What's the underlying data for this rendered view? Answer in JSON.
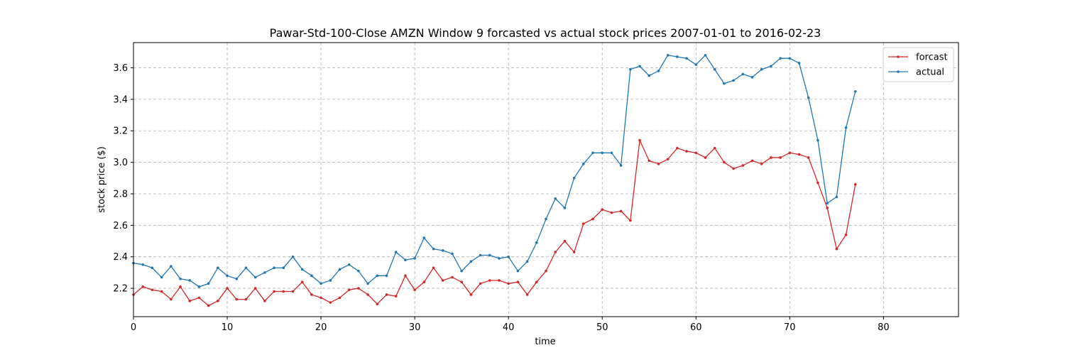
{
  "chart_data": {
    "type": "line",
    "title": "Pawar-Std-100-Close AMZN Window 9 forcasted vs actual stock prices 2007-01-01 to 2016-02-23",
    "xlabel": "time",
    "ylabel": "stock price ($)",
    "xlim": [
      0,
      88
    ],
    "ylim": [
      2.02,
      3.76
    ],
    "xticks": [
      0,
      10,
      20,
      30,
      40,
      50,
      60,
      70,
      80
    ],
    "yticks": [
      2.2,
      2.4,
      2.6,
      2.8,
      3.0,
      3.2,
      3.4,
      3.6
    ],
    "grid": true,
    "legend_position": "top-right",
    "series": [
      {
        "name": "forcast",
        "color": "#d62728",
        "values": [
          2.16,
          2.21,
          2.19,
          2.18,
          2.13,
          2.21,
          2.12,
          2.14,
          2.09,
          2.12,
          2.2,
          2.13,
          2.13,
          2.2,
          2.12,
          2.18,
          2.18,
          2.18,
          2.24,
          2.16,
          2.14,
          2.11,
          2.14,
          2.19,
          2.2,
          2.16,
          2.1,
          2.16,
          2.15,
          2.28,
          2.19,
          2.24,
          2.33,
          2.25,
          2.27,
          2.24,
          2.16,
          2.23,
          2.25,
          2.25,
          2.23,
          2.24,
          2.16,
          2.24,
          2.31,
          2.43,
          2.5,
          2.43,
          2.61,
          2.64,
          2.7,
          2.68,
          2.69,
          2.63,
          3.14,
          3.01,
          2.99,
          3.02,
          3.09,
          3.07,
          3.06,
          3.03,
          3.09,
          3.0,
          2.96,
          2.98,
          3.01,
          2.99,
          3.03,
          3.03,
          3.06,
          3.05,
          3.03,
          2.87,
          2.71,
          2.45,
          2.54,
          2.86
        ]
      },
      {
        "name": "actual",
        "color": "#1f77b4",
        "values": [
          2.36,
          2.35,
          2.33,
          2.27,
          2.34,
          2.26,
          2.25,
          2.21,
          2.23,
          2.33,
          2.28,
          2.26,
          2.33,
          2.27,
          2.3,
          2.33,
          2.33,
          2.4,
          2.32,
          2.28,
          2.23,
          2.25,
          2.32,
          2.35,
          2.31,
          2.23,
          2.28,
          2.28,
          2.43,
          2.38,
          2.39,
          2.52,
          2.45,
          2.44,
          2.42,
          2.31,
          2.37,
          2.41,
          2.41,
          2.39,
          2.4,
          2.31,
          2.37,
          2.49,
          2.64,
          2.77,
          2.71,
          2.9,
          2.99,
          3.06,
          3.06,
          3.06,
          2.98,
          3.59,
          3.61,
          3.55,
          3.58,
          3.68,
          3.67,
          3.66,
          3.62,
          3.68,
          3.59,
          3.5,
          3.52,
          3.56,
          3.54,
          3.59,
          3.61,
          3.66,
          3.66,
          3.63,
          3.41,
          3.14,
          2.74,
          2.78,
          3.22,
          3.45
        ]
      }
    ]
  }
}
